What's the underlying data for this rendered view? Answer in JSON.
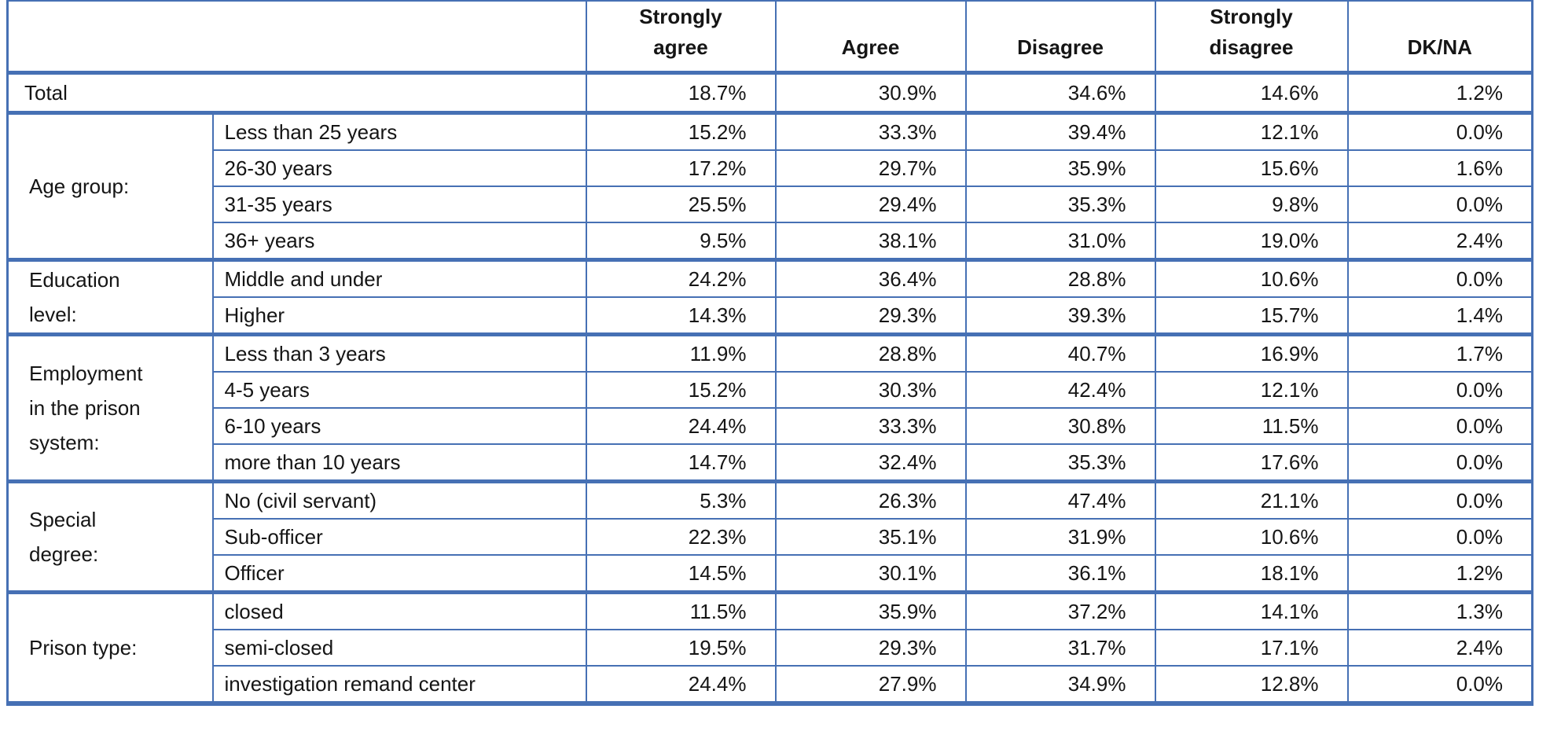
{
  "styles": {
    "border_color": "#4670b4",
    "text_color": "#151515",
    "background_color": "#ffffff"
  },
  "chart_data": {
    "type": "table",
    "title": "",
    "unit": "percent",
    "columns": [
      "Strongly agree",
      "Agree",
      "Disagree",
      "Strongly disagree",
      "DK/NA"
    ],
    "column_display": [
      "Strongly\nagree",
      "Agree",
      "Disagree",
      "Strongly\ndisagree",
      "DK/NA"
    ],
    "total": {
      "label": "Total",
      "values": [
        18.7,
        30.9,
        34.6,
        14.6,
        1.2
      ]
    },
    "groups": [
      {
        "label": "Age group:",
        "rows": [
          {
            "label": "Less than 25 years",
            "values": [
              15.2,
              33.3,
              39.4,
              12.1,
              0.0
            ]
          },
          {
            "label": "26-30 years",
            "values": [
              17.2,
              29.7,
              35.9,
              15.6,
              1.6
            ]
          },
          {
            "label": "31-35 years",
            "values": [
              25.5,
              29.4,
              35.3,
              9.8,
              0.0
            ]
          },
          {
            "label": "36+ years",
            "values": [
              9.5,
              38.1,
              31.0,
              19.0,
              2.4
            ]
          }
        ]
      },
      {
        "label": "Education level:",
        "display_label": "Education\nlevel:",
        "rows": [
          {
            "label": "Middle and under",
            "values": [
              24.2,
              36.4,
              28.8,
              10.6,
              0.0
            ]
          },
          {
            "label": "Higher",
            "values": [
              14.3,
              29.3,
              39.3,
              15.7,
              1.4
            ]
          }
        ]
      },
      {
        "label": "Employment in the prison system:",
        "display_label": "Employment\nin the prison\nsystem:",
        "rows": [
          {
            "label": "Less than 3 years",
            "values": [
              11.9,
              28.8,
              40.7,
              16.9,
              1.7
            ]
          },
          {
            "label": "4-5 years",
            "values": [
              15.2,
              30.3,
              42.4,
              12.1,
              0.0
            ]
          },
          {
            "label": "6-10 years",
            "values": [
              24.4,
              33.3,
              30.8,
              11.5,
              0.0
            ]
          },
          {
            "label": "more than 10 years",
            "values": [
              14.7,
              32.4,
              35.3,
              17.6,
              0.0
            ]
          }
        ]
      },
      {
        "label": "Special degree:",
        "display_label": "Special\ndegree:",
        "rows": [
          {
            "label": "No (civil servant)",
            "values": [
              5.3,
              26.3,
              47.4,
              21.1,
              0.0
            ]
          },
          {
            "label": "Sub-officer",
            "values": [
              22.3,
              35.1,
              31.9,
              10.6,
              0.0
            ]
          },
          {
            "label": "Officer",
            "values": [
              14.5,
              30.1,
              36.1,
              18.1,
              1.2
            ]
          }
        ]
      },
      {
        "label": "Prison type:",
        "rows": [
          {
            "label": "closed",
            "values": [
              11.5,
              35.9,
              37.2,
              14.1,
              1.3
            ]
          },
          {
            "label": "semi-closed",
            "values": [
              19.5,
              29.3,
              31.7,
              17.1,
              2.4
            ]
          },
          {
            "label": "investigation remand center",
            "values": [
              24.4,
              27.9,
              34.9,
              12.8,
              0.0
            ]
          }
        ]
      }
    ]
  }
}
